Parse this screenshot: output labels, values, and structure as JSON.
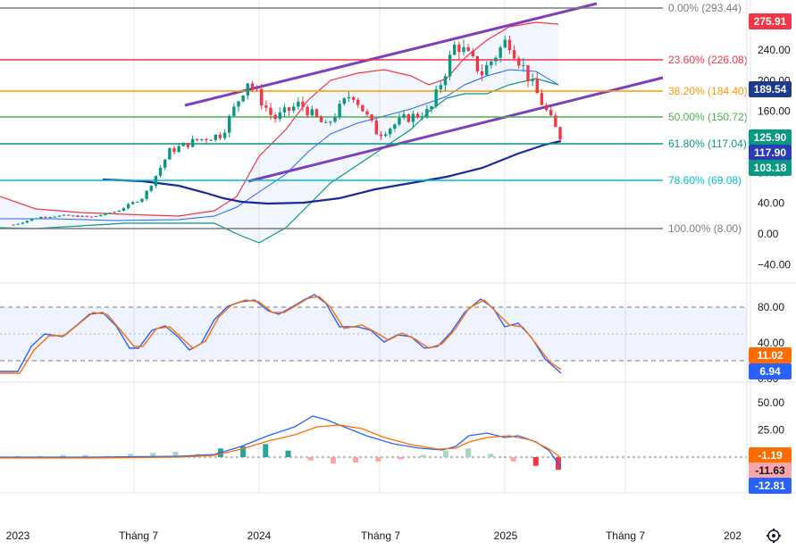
{
  "chart_data": [
    {
      "type": "candlestick",
      "panel": "price",
      "y_ticks": [
        "240.00",
        "200.00",
        "160.00",
        "120.00",
        "80.00",
        "40.00",
        "0.00",
        "−40.00"
      ],
      "ylim": [
        -50,
        300
      ],
      "fib_levels": [
        {
          "label": "0.00% (293.44)",
          "value": 293.44,
          "color": "#787b86"
        },
        {
          "label": "23.60% (226.08)",
          "value": 226.08,
          "color": "#f23645"
        },
        {
          "label": "38.20% (184.40)",
          "value": 184.4,
          "color": "#ff9800"
        },
        {
          "label": "50.00% (150.72)",
          "value": 150.72,
          "color": "#4caf50"
        },
        {
          "label": "61.80% (117.04)",
          "value": 117.04,
          "color": "#089981"
        },
        {
          "label": "78.60% (69.08)",
          "value": 69.08,
          "color": "#00bcd4"
        },
        {
          "label": "100.00% (8.00)",
          "value": 8.0,
          "color": "#787b86"
        }
      ],
      "price_tags": [
        {
          "label": "275.91",
          "value": 275.91,
          "color": "#f23645"
        },
        {
          "label": "189.54",
          "value": 189.54,
          "color": "#1e3a8a"
        },
        {
          "label": "125.90",
          "value": 125.9,
          "color": "#089981"
        },
        {
          "label": "117.90",
          "value": 117.9,
          "color": "#2c3bb8"
        },
        {
          "label": "103.18",
          "value": 103.18,
          "color": "#089981"
        }
      ],
      "candles_sampled": [
        {
          "date": "2023-01",
          "close": 12
        },
        {
          "date": "2023-04",
          "close": 22
        },
        {
          "date": "2023-07",
          "close": 24
        },
        {
          "date": "2023-09",
          "close": 22
        },
        {
          "date": "2023-10",
          "close": 30
        },
        {
          "date": "2023-11",
          "close": 48
        },
        {
          "date": "2023-12",
          "close": 108
        },
        {
          "date": "2024-01",
          "close": 122
        },
        {
          "date": "2024-02",
          "close": 130
        },
        {
          "date": "2024-03",
          "close": 200
        },
        {
          "date": "2024-04",
          "close": 150
        },
        {
          "date": "2024-05",
          "close": 170
        },
        {
          "date": "2024-06",
          "close": 140
        },
        {
          "date": "2024-07",
          "close": 185
        },
        {
          "date": "2024-08",
          "close": 130
        },
        {
          "date": "2024-09",
          "close": 150
        },
        {
          "date": "2024-10",
          "close": 160
        },
        {
          "date": "2024-11",
          "close": 250
        },
        {
          "date": "2024-12",
          "close": 210
        },
        {
          "date": "2025-01",
          "close": 255
        },
        {
          "date": "2025-02",
          "close": 190
        },
        {
          "date": "2025-03",
          "close": 126
        }
      ]
    },
    {
      "type": "line",
      "panel": "stochastic",
      "y_ticks": [
        "80.00",
        "40.00",
        "0.00"
      ],
      "ylim": [
        0,
        100
      ],
      "bands": [
        80,
        50,
        20
      ],
      "series": [
        {
          "color": "#2962ff",
          "values": [
            10,
            50,
            45,
            75,
            25,
            60,
            30,
            85,
            60,
            92,
            50,
            30,
            45,
            25,
            90,
            55,
            35,
            7
          ]
        },
        {
          "color": "#ff6d00",
          "values": [
            8,
            48,
            48,
            72,
            28,
            58,
            32,
            82,
            62,
            90,
            52,
            32,
            43,
            28,
            88,
            57,
            38,
            11
          ]
        }
      ],
      "value_tags": [
        {
          "label": "11.02",
          "value": 11.02,
          "color": "#ff6d00"
        },
        {
          "label": "6.94",
          "value": 6.94,
          "color": "#2962ff"
        }
      ]
    },
    {
      "type": "bar",
      "panel": "macd",
      "y_ticks": [
        "50.00",
        "25.00"
      ],
      "ylim": [
        -20,
        60
      ],
      "series": [
        {
          "color": "#2962ff",
          "values": [
            -1,
            0,
            1,
            2,
            3,
            20,
            28,
            38,
            22,
            10,
            2,
            20,
            17,
            8,
            -12.81
          ]
        },
        {
          "color": "#ff6d00",
          "values": [
            -1,
            0,
            1,
            1.5,
            2,
            12,
            22,
            30,
            26,
            15,
            8,
            18,
            18,
            10,
            -1.19
          ]
        }
      ],
      "histogram": [
        1,
        1,
        2,
        2,
        1,
        3,
        4,
        5,
        3,
        8,
        10,
        12,
        6,
        -3,
        -6,
        -5,
        -4,
        -2,
        2,
        6,
        8,
        3,
        -4,
        -8,
        -11.63
      ],
      "value_tags": [
        {
          "label": "-1.19",
          "value": -1.19,
          "color": "#ff6d00"
        },
        {
          "label": "-11.63",
          "value": -11.63,
          "color": "#f7a5a5"
        },
        {
          "label": "-12.81",
          "value": -12.81,
          "color": "#2962ff"
        }
      ]
    }
  ],
  "time_axis": {
    "labels": [
      "2023",
      "Tháng 7",
      "2024",
      "Tháng 7",
      "2025",
      "Tháng 7",
      "202"
    ]
  },
  "icons": {
    "settings": "gear-icon"
  }
}
